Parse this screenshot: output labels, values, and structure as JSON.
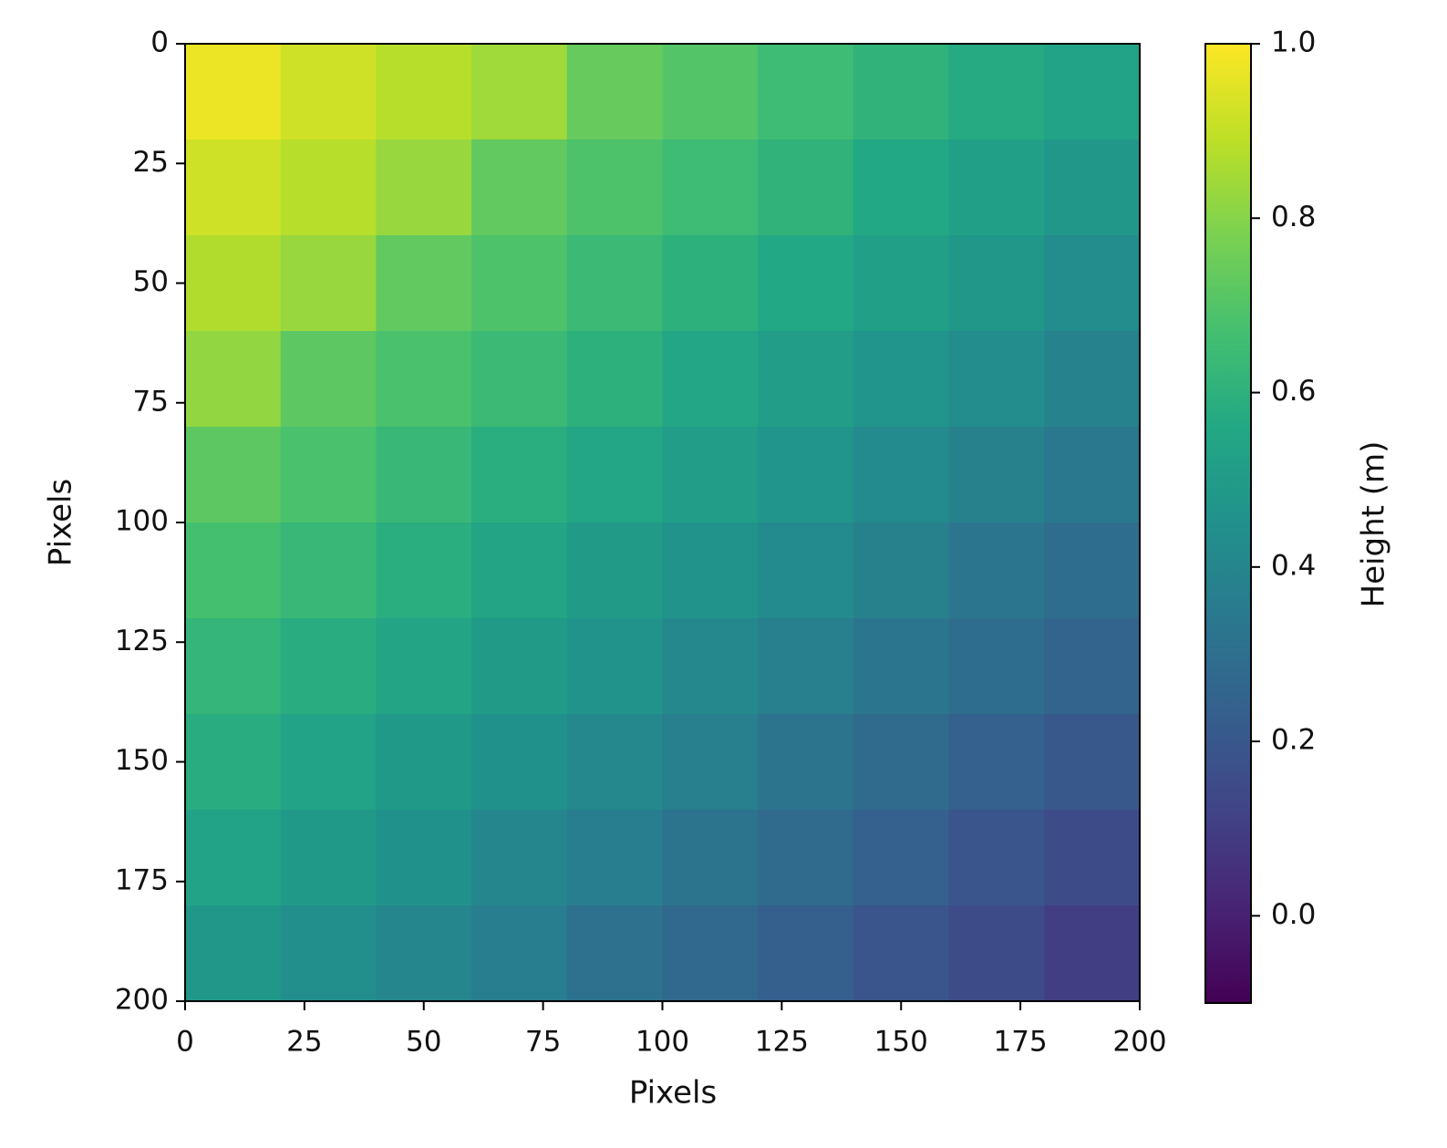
{
  "chart_data": {
    "type": "heatmap",
    "xlabel": "Pixels",
    "ylabel": "Pixels",
    "colorbar_label": "Height (m)",
    "cmap": "viridis",
    "xlim": [
      0,
      200
    ],
    "ylim": [
      200,
      0
    ],
    "xticks": [
      0,
      25,
      50,
      75,
      100,
      125,
      150,
      175,
      200
    ],
    "yticks": [
      0,
      25,
      50,
      75,
      100,
      125,
      150,
      175,
      200
    ],
    "clim": [
      -0.1,
      1.0
    ],
    "cticks": [
      {
        "value": 0,
        "label": "0.0"
      },
      {
        "value": 0.2,
        "label": "0.2"
      },
      {
        "value": 0.4,
        "label": "0.4"
      },
      {
        "value": 0.6,
        "label": "0.6"
      },
      {
        "value": 0.8,
        "label": "0.8"
      },
      {
        "value": 1,
        "label": "1.0"
      }
    ],
    "z": [
      [
        0.97,
        0.92,
        0.88,
        0.84,
        0.74,
        0.7,
        0.65,
        0.61,
        0.57,
        0.53
      ],
      [
        0.92,
        0.88,
        0.83,
        0.73,
        0.69,
        0.65,
        0.61,
        0.56,
        0.52,
        0.48
      ],
      [
        0.87,
        0.83,
        0.73,
        0.69,
        0.64,
        0.6,
        0.56,
        0.52,
        0.48,
        0.43
      ],
      [
        0.82,
        0.72,
        0.68,
        0.64,
        0.6,
        0.55,
        0.51,
        0.47,
        0.43,
        0.39
      ],
      [
        0.72,
        0.68,
        0.63,
        0.59,
        0.55,
        0.51,
        0.47,
        0.42,
        0.38,
        0.34
      ],
      [
        0.67,
        0.63,
        0.59,
        0.54,
        0.5,
        0.46,
        0.42,
        0.38,
        0.33,
        0.29
      ],
      [
        0.62,
        0.58,
        0.54,
        0.5,
        0.46,
        0.41,
        0.37,
        0.33,
        0.29,
        0.25
      ],
      [
        0.58,
        0.53,
        0.49,
        0.45,
        0.41,
        0.37,
        0.32,
        0.28,
        0.24,
        0.2
      ],
      [
        0.53,
        0.49,
        0.45,
        0.4,
        0.36,
        0.32,
        0.28,
        0.24,
        0.19,
        0.15
      ],
      [
        0.48,
        0.44,
        0.4,
        0.36,
        0.31,
        0.27,
        0.23,
        0.19,
        0.15,
        0.1
      ]
    ]
  }
}
